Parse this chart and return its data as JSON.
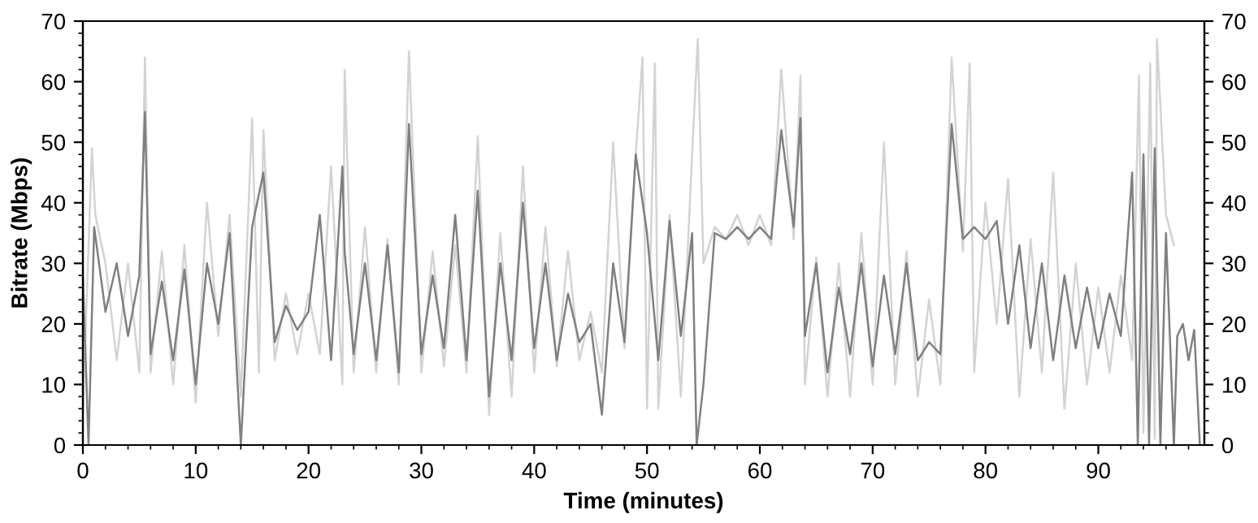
{
  "chart_data": {
    "type": "line",
    "xlabel": "Time (minutes)",
    "ylabel": "Bitrate (Mbps)",
    "xlim": [
      0,
      99.4
    ],
    "xticks": [
      0,
      10,
      20,
      30,
      40,
      50,
      60,
      70,
      80,
      90
    ],
    "ylim": [
      0,
      70
    ],
    "yticks": [
      0,
      10,
      20,
      30,
      40,
      50,
      60,
      70
    ],
    "y2lim": [
      0,
      70
    ],
    "y2ticks": [
      0,
      10,
      20,
      30,
      40,
      50,
      60,
      70
    ],
    "grid": false,
    "marker": "none",
    "line_style": "solid",
    "series": [
      {
        "color": "#d3d3d3",
        "x": [
          0,
          0.8,
          1.1,
          2,
          3,
          4,
          5,
          5.5,
          6,
          7,
          8,
          9,
          10,
          11,
          12,
          13,
          14,
          15,
          15.6,
          16,
          17,
          18,
          19,
          20,
          21,
          22,
          23,
          23.2,
          24,
          25,
          26,
          27,
          28,
          28.9,
          30,
          31,
          32,
          33,
          34,
          35,
          36,
          37,
          38,
          39,
          40,
          41,
          42,
          43,
          44,
          45,
          46,
          47,
          48,
          49,
          49.6,
          50,
          50.7,
          51,
          52,
          53,
          54,
          54.5,
          55,
          56,
          57,
          58,
          59,
          60,
          61,
          61.9,
          63,
          63.6,
          64,
          65,
          66,
          67,
          68,
          69,
          70,
          71,
          72,
          73,
          74,
          75,
          76,
          77,
          78,
          78.6,
          79,
          80,
          81,
          82,
          83,
          84,
          85,
          86,
          87,
          88,
          89,
          90,
          91,
          92,
          93,
          93.6,
          94,
          94.6,
          95,
          95.2,
          96,
          96.7
        ],
        "values": [
          6,
          49,
          38,
          30,
          14,
          30,
          12,
          64,
          12,
          32,
          10,
          33,
          7,
          40,
          18,
          38,
          8,
          54,
          12,
          52,
          14,
          25,
          15,
          25,
          15,
          46,
          10,
          62,
          12,
          36,
          12,
          34,
          10,
          65,
          12,
          32,
          13,
          33,
          12,
          51,
          5,
          35,
          8,
          46,
          12,
          36,
          13,
          32,
          14,
          22,
          12,
          50,
          16,
          48,
          64,
          6,
          63,
          6,
          38,
          8,
          48,
          67,
          30,
          36,
          34,
          38,
          33,
          38,
          33,
          62,
          34,
          61,
          10,
          31,
          8,
          30,
          8,
          35,
          10,
          50,
          10,
          32,
          8,
          24,
          10,
          64,
          32,
          63,
          12,
          40,
          20,
          44,
          8,
          34,
          12,
          45,
          6,
          30,
          10,
          26,
          12,
          28,
          14,
          61,
          2,
          63,
          1,
          67,
          38,
          33
        ]
      },
      {
        "color": "#808080",
        "x": [
          0,
          0.5,
          1,
          2,
          3,
          4,
          5,
          5.5,
          6,
          7,
          8,
          9,
          10,
          11,
          12,
          13,
          14,
          15,
          16,
          17,
          18,
          19,
          20,
          21,
          22,
          23,
          23.2,
          24,
          25,
          26,
          27,
          28,
          28.9,
          30,
          31,
          32,
          33,
          34,
          35,
          36,
          37,
          38,
          39,
          40,
          41,
          42,
          43,
          44,
          45,
          46,
          47,
          48,
          49,
          50,
          51,
          52,
          53,
          54,
          54.4,
          55,
          56,
          57,
          58,
          59,
          60,
          61,
          61.9,
          63,
          63.6,
          64,
          65,
          66,
          67,
          68,
          69,
          70,
          71,
          72,
          73,
          74,
          75,
          76,
          77,
          78,
          79,
          80,
          81,
          82,
          83,
          84,
          85,
          86,
          87,
          88,
          89,
          90,
          91,
          92,
          93,
          93.5,
          94,
          94.5,
          95,
          95.5,
          96,
          96.7,
          97,
          97.5,
          98,
          98.5,
          99
        ],
        "values": [
          28,
          0,
          36,
          22,
          30,
          18,
          28,
          55,
          15,
          27,
          14,
          29,
          10,
          30,
          20,
          35,
          0,
          36,
          45,
          17,
          23,
          19,
          22,
          38,
          14,
          46,
          32,
          15,
          30,
          14,
          33,
          12,
          53,
          15,
          28,
          16,
          38,
          14,
          42,
          8,
          30,
          14,
          40,
          16,
          30,
          14,
          25,
          17,
          20,
          5,
          30,
          17,
          48,
          35,
          14,
          37,
          18,
          35,
          0,
          10,
          35,
          34,
          36,
          34,
          36,
          34,
          52,
          36,
          54,
          18,
          30,
          12,
          26,
          15,
          30,
          13,
          28,
          15,
          30,
          14,
          17,
          15,
          53,
          34,
          36,
          34,
          37,
          20,
          33,
          16,
          30,
          14,
          28,
          16,
          26,
          16,
          25,
          18,
          45,
          0,
          48,
          0,
          49,
          0,
          35,
          0,
          18,
          20,
          14,
          19,
          0
        ]
      }
    ]
  }
}
